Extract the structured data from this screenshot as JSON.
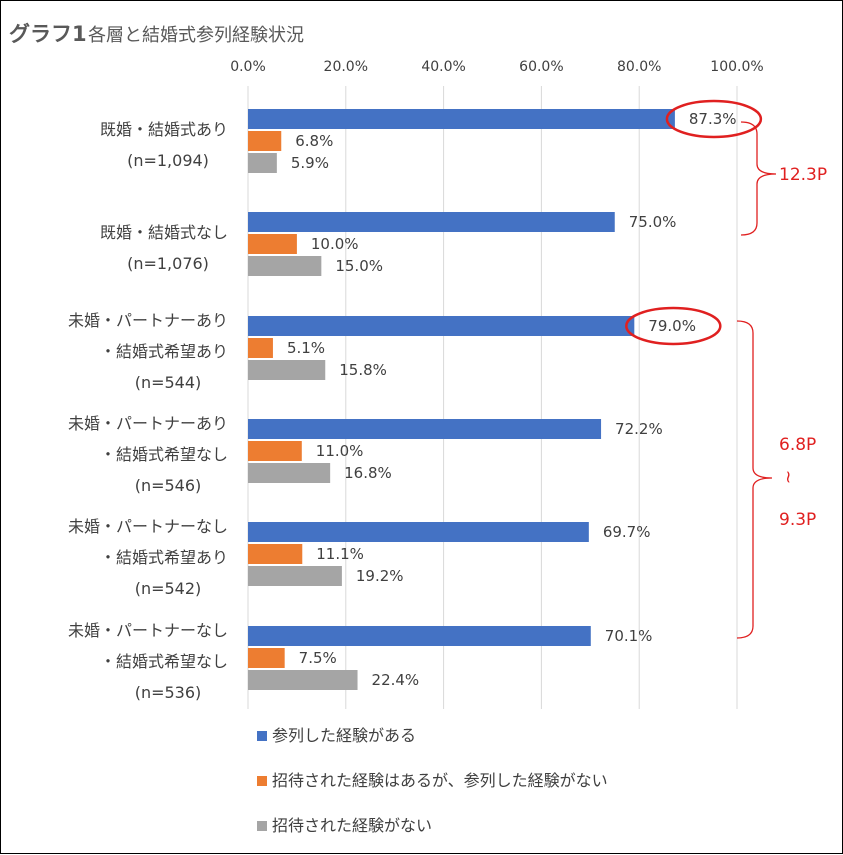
{
  "chart_data": {
    "type": "bar",
    "orientation": "horizontal",
    "title_bold": "グラフ1",
    "title_rest": "各層と結婚式参列経験状況",
    "xlim": [
      0,
      100
    ],
    "x_ticks": [
      "0.0%",
      "20.0%",
      "40.0%",
      "60.0%",
      "80.0%",
      "100.0%"
    ],
    "grid": true,
    "legend_position": "bottom",
    "categories": [
      {
        "lines": [
          "既婚・結婚式あり",
          "(n=1,094)"
        ]
      },
      {
        "lines": [
          "既婚・結婚式なし",
          "(n=1,076)"
        ]
      },
      {
        "lines": [
          "未婚・パートナーあり",
          "・結婚式希望あり",
          "(n=544)"
        ]
      },
      {
        "lines": [
          "未婚・パートナーあり",
          "・結婚式希望なし",
          "(n=546)"
        ]
      },
      {
        "lines": [
          "未婚・パートナーなし",
          "・結婚式希望あり",
          "(n=542)"
        ]
      },
      {
        "lines": [
          "未婚・パートナーなし",
          "・結婚式希望なし",
          "(n=536)"
        ]
      }
    ],
    "series": [
      {
        "name": "参列した経験がある",
        "color": "#4472c4",
        "values": [
          87.3,
          75.0,
          79.0,
          72.2,
          69.7,
          70.1
        ],
        "labels": [
          "87.3%",
          "75.0%",
          "79.0%",
          "72.2%",
          "69.7%",
          "70.1%"
        ]
      },
      {
        "name": "招待された経験はあるが、参列した経験がない",
        "color": "#ed7d31",
        "values": [
          6.8,
          10.0,
          5.1,
          11.0,
          11.1,
          7.5
        ],
        "labels": [
          "6.8%",
          "10.0%",
          "5.1%",
          "11.0%",
          "11.1%",
          "7.5%"
        ]
      },
      {
        "name": "招待された経験がない",
        "color": "#a5a5a5",
        "values": [
          5.9,
          15.0,
          15.8,
          16.8,
          19.2,
          22.4
        ],
        "labels": [
          "5.9%",
          "15.0%",
          "15.8%",
          "16.8%",
          "19.2%",
          "22.4%"
        ]
      }
    ],
    "annotations": {
      "circled": [
        {
          "category": 0,
          "series": 0
        },
        {
          "category": 2,
          "series": 0
        }
      ],
      "bracket_top": {
        "from_category": 0,
        "to_category": 1,
        "label": "12.3P"
      },
      "bracket_bottom": {
        "from_category": 2,
        "to_category": 5,
        "label_top": "6.8P",
        "label_tilde": "~",
        "label_bottom": "9.3P"
      },
      "color": "#e02020"
    }
  }
}
